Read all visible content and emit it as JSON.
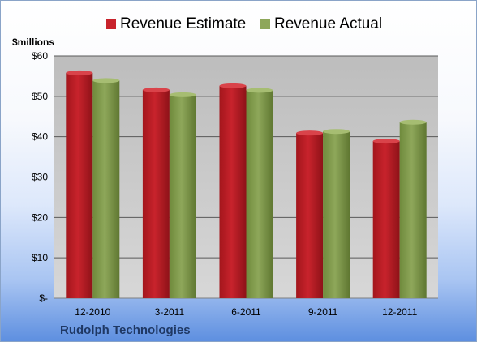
{
  "colors": {
    "estimate": "#c8232c",
    "actual": "#8ea75a",
    "plot_bg": "#c9c9c9",
    "grid": "#595959"
  },
  "unit_label": "$millions",
  "company": "Rudolph Technologies",
  "chart_data": {
    "type": "bar",
    "categories": [
      "12-2010",
      "3-2011",
      "6-2011",
      "9-2011",
      "12-2011"
    ],
    "series": [
      {
        "name": "Revenue Estimate",
        "values": [
          55.8,
          51.6,
          52.6,
          40.9,
          38.9
        ]
      },
      {
        "name": "Revenue Actual",
        "values": [
          53.9,
          50.4,
          51.5,
          41.3,
          43.6
        ]
      }
    ],
    "ylim": [
      0,
      60
    ],
    "yticks": [
      0,
      10,
      20,
      30,
      40,
      50,
      60
    ],
    "ytick_labels": [
      "$-",
      "$10",
      "$20",
      "$30",
      "$40",
      "$50",
      "$60"
    ],
    "ylabel": "$millions",
    "title": "",
    "grid": true,
    "legend_position": "top"
  }
}
